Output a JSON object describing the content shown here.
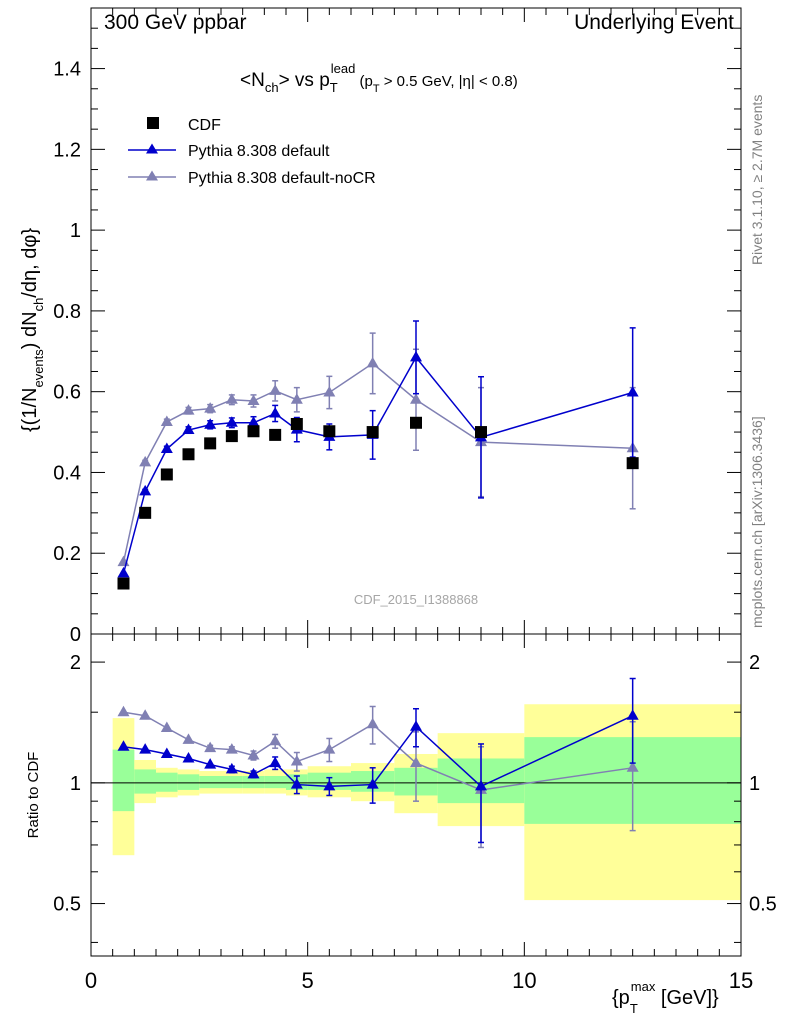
{
  "header": {
    "left": "300 GeV ppbar",
    "right": "Underlying Event"
  },
  "side_labels": {
    "rivet": "Rivet 3.1.10, ≥ 2.7M events",
    "source": "mcplots.cern.ch [arXiv:1306.3436]"
  },
  "main_plot": {
    "title": {
      "a": "<N",
      "a_sub": "ch",
      "b": "> vs p",
      "b_sup": "lead",
      "b_sub": "T",
      "c": " (p",
      "c_sub": "T",
      "d": " > 0.5 GeV, |η| < 0.8)"
    },
    "ylabel": "{(1/N_events) dN_ch/dη, dφ}",
    "ylabel_parts": {
      "a": "{(1/N",
      "a_sub": "events",
      "b": ") dN",
      "b_sub": "ch",
      "c": "/dη, dφ}"
    },
    "watermark": "CDF_2015_I1388868"
  },
  "ratio_plot": {
    "ylabel": "Ratio to CDF"
  },
  "xlabel": {
    "a": "{p",
    "a_sup": "max",
    "a_sub": "T",
    "b": " [GeV]}"
  },
  "legend": [
    {
      "label": "CDF",
      "marker": "square",
      "color": "#000000"
    },
    {
      "label": "Pythia 8.308 default",
      "marker": "triangle",
      "color": "#0000cc"
    },
    {
      "label": "Pythia 8.308 default-noCR",
      "marker": "triangle",
      "color": "#8080b3"
    }
  ],
  "colors": {
    "band_inner": "#99ff99",
    "band_outer": "#ffff99",
    "default": "#0000cc",
    "noCR": "#8080b3",
    "data": "#000000"
  },
  "chart_data": [
    {
      "type": "scatter",
      "name": "main",
      "xlim": [
        0,
        15
      ],
      "ylim": [
        0,
        1.55
      ],
      "x_ticks": [
        0,
        5,
        10,
        15
      ],
      "y_ticks": [
        0,
        0.2,
        0.4,
        0.6,
        0.8,
        1,
        1.2,
        1.4
      ],
      "y_tick_labels": [
        "0",
        "0.2",
        "0.4",
        "0.6",
        "0.8",
        "1",
        "1.2",
        "1.4"
      ],
      "series": [
        {
          "name": "CDF",
          "x": [
            0.75,
            1.25,
            1.75,
            2.25,
            2.75,
            3.25,
            3.75,
            4.25,
            4.75,
            5.5,
            6.5,
            7.5,
            9.0,
            12.5
          ],
          "y": [
            0.125,
            0.3,
            0.395,
            0.445,
            0.472,
            0.49,
            0.502,
            0.493,
            0.52,
            0.502,
            0.5,
            0.523,
            0.5,
            0.423
          ],
          "err": [
            0.005,
            0.005,
            0.006,
            0.006,
            0.006,
            0.006,
            0.006,
            0.006,
            0.007,
            0.007,
            0.008,
            0.008,
            0.01,
            0.012
          ]
        },
        {
          "name": "Pythia 8.308 default",
          "x": [
            0.75,
            1.25,
            1.75,
            2.25,
            2.75,
            3.25,
            3.75,
            4.25,
            4.75,
            5.5,
            6.5,
            7.5,
            9.0,
            12.5
          ],
          "y": [
            0.15,
            0.353,
            0.458,
            0.505,
            0.518,
            0.523,
            0.523,
            0.546,
            0.506,
            0.488,
            0.493,
            0.685,
            0.487,
            0.598
          ],
          "err": [
            0.003,
            0.005,
            0.007,
            0.008,
            0.01,
            0.012,
            0.015,
            0.02,
            0.03,
            0.032,
            0.06,
            0.09,
            0.15,
            0.16
          ]
        },
        {
          "name": "Pythia 8.308 default-noCR",
          "x": [
            0.75,
            1.25,
            1.75,
            2.25,
            2.75,
            3.25,
            3.75,
            4.25,
            4.75,
            5.5,
            6.5,
            7.5,
            9.0,
            12.5
          ],
          "y": [
            0.178,
            0.425,
            0.525,
            0.553,
            0.558,
            0.58,
            0.577,
            0.602,
            0.58,
            0.598,
            0.67,
            0.58,
            0.475,
            0.46
          ],
          "err": [
            0.003,
            0.005,
            0.007,
            0.008,
            0.01,
            0.012,
            0.015,
            0.025,
            0.03,
            0.04,
            0.075,
            0.125,
            0.135,
            0.15
          ]
        }
      ]
    },
    {
      "type": "scatter",
      "name": "ratio",
      "xlim": [
        0,
        15
      ],
      "ylim": [
        0.37,
        2.35
      ],
      "log_y": true,
      "x_ticks": [
        0,
        5,
        10,
        15
      ],
      "x_tick_labels": [
        "0",
        "5",
        "10",
        "15"
      ],
      "y_ticks": [
        0.5,
        1,
        2
      ],
      "y_tick_labels": [
        "0.5",
        "1",
        "2"
      ],
      "bands": {
        "edges": [
          0.5,
          1.0,
          1.5,
          2.0,
          2.5,
          3.0,
          3.5,
          4.0,
          4.5,
          5.0,
          6.0,
          7.0,
          8.0,
          10.0,
          15.0
        ],
        "inner_lo": [
          0.85,
          0.94,
          0.95,
          0.96,
          0.97,
          0.97,
          0.97,
          0.97,
          0.96,
          0.96,
          0.95,
          0.93,
          0.89,
          0.79
        ],
        "inner_hi": [
          1.21,
          1.08,
          1.06,
          1.05,
          1.04,
          1.04,
          1.04,
          1.04,
          1.05,
          1.06,
          1.07,
          1.09,
          1.15,
          1.3
        ],
        "outer_lo": [
          0.66,
          0.89,
          0.92,
          0.93,
          0.94,
          0.94,
          0.94,
          0.94,
          0.93,
          0.92,
          0.9,
          0.84,
          0.78,
          0.51
        ],
        "outer_hi": [
          1.45,
          1.14,
          1.09,
          1.08,
          1.07,
          1.07,
          1.07,
          1.08,
          1.08,
          1.1,
          1.12,
          1.18,
          1.33,
          1.57
        ]
      },
      "series": [
        {
          "name": "Pythia 8.308 default",
          "x": [
            0.75,
            1.25,
            1.75,
            2.25,
            2.75,
            3.25,
            3.75,
            4.25,
            4.75,
            5.5,
            6.5,
            7.5,
            9.0,
            12.5
          ],
          "y": [
            1.23,
            1.21,
            1.18,
            1.15,
            1.11,
            1.08,
            1.05,
            1.12,
            0.99,
            0.98,
            0.99,
            1.38,
            0.98,
            1.47
          ],
          "err": [
            0.01,
            0.01,
            0.01,
            0.01,
            0.01,
            0.02,
            0.02,
            0.04,
            0.05,
            0.05,
            0.1,
            0.15,
            0.27,
            0.35
          ]
        },
        {
          "name": "Pythia 8.308 default-noCR",
          "x": [
            0.75,
            1.25,
            1.75,
            2.25,
            2.75,
            3.25,
            3.75,
            4.25,
            4.75,
            5.5,
            6.5,
            7.5,
            9.0,
            12.5
          ],
          "y": [
            1.5,
            1.47,
            1.37,
            1.28,
            1.22,
            1.21,
            1.17,
            1.27,
            1.13,
            1.21,
            1.4,
            1.12,
            0.96,
            1.09
          ],
          "err": [
            0.01,
            0.01,
            0.01,
            0.01,
            0.02,
            0.02,
            0.03,
            0.05,
            0.06,
            0.08,
            0.15,
            0.22,
            0.27,
            0.33
          ]
        }
      ]
    }
  ]
}
